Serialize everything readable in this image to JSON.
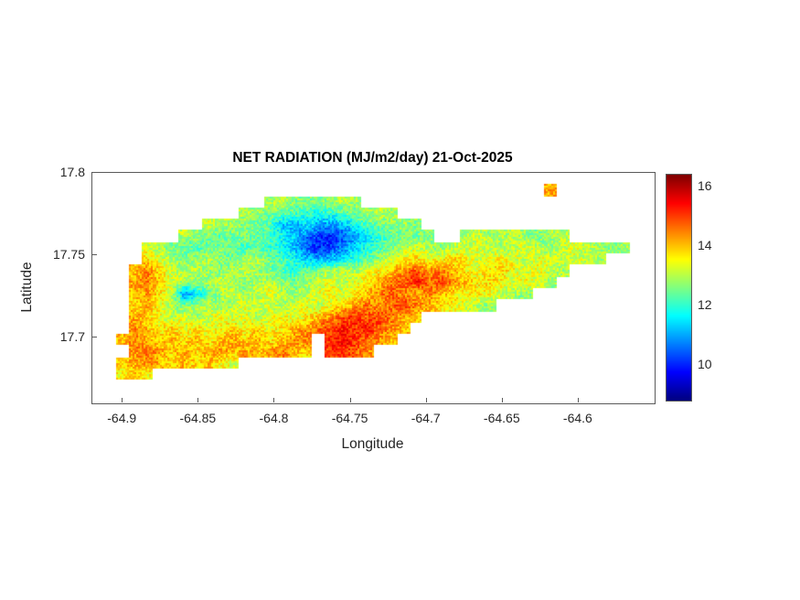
{
  "chart_data": {
    "type": "heatmap",
    "title": "NET RADIATION (MJ/m2/day) 21-Oct-2025",
    "xlabel": "Longitude",
    "ylabel": "Latitude",
    "units": "MJ/m2/day",
    "x_range": [
      -64.92,
      -64.55
    ],
    "y_range": [
      17.66,
      17.8
    ],
    "x_ticks": [
      -64.9,
      -64.85,
      -64.8,
      -64.75,
      -64.7,
      -64.65,
      -64.6
    ],
    "y_ticks": [
      17.8,
      17.75,
      17.7
    ],
    "colormap": "jet",
    "color_range": [
      8.8,
      16.4
    ],
    "colorbar_ticks": [
      16,
      14,
      12,
      10
    ],
    "background_color": "#ffffff",
    "grid": {
      "nx": 46,
      "ny": 20,
      "rows": [
        {
          "row": 1,
          "start": 37,
          "vals": [
            14.2
          ]
        },
        {
          "row": 2,
          "start": 14,
          "vals": [
            12.9,
            13.0,
            12.7,
            12.5,
            12.6,
            12.8,
            13.0,
            12.8
          ]
        },
        {
          "row": 3,
          "start": 12,
          "vals": [
            13.0,
            12.8,
            12.6,
            12.4,
            12.2,
            12.0,
            11.8,
            12.0,
            12.3,
            12.5,
            12.8,
            13.0,
            12.9
          ]
        },
        {
          "row": 4,
          "start": 9,
          "vals": [
            13.2,
            13.0,
            12.8,
            12.6,
            12.5,
            12.3,
            11.2,
            11.0,
            11.5,
            11.0,
            10.8,
            11.2,
            11.8,
            12.2,
            12.5,
            12.7,
            12.8,
            12.6
          ]
        },
        {
          "row": 5,
          "start": 7,
          "vals": [
            13.0,
            12.8,
            12.5,
            12.3,
            12.5,
            12.6,
            12.4,
            12.2,
            11.8,
            11.4,
            10.6,
            10.2,
            10.0,
            10.4,
            11.0,
            11.6,
            12.0,
            12.4,
            12.6,
            12.5,
            12.7,
            null,
            null,
            12.9,
            13.1,
            12.8,
            12.9,
            13.0,
            12.8,
            12.6,
            12.9,
            13.0
          ]
        },
        {
          "row": 6,
          "start": 4,
          "vals": [
            13.3,
            12.9,
            12.6,
            12.4,
            12.2,
            12.4,
            12.6,
            12.3,
            12.1,
            12.3,
            12.0,
            11.6,
            11.2,
            10.4,
            10.0,
            10.2,
            10.8,
            11.4,
            11.8,
            12.2,
            12.6,
            13.0,
            13.2,
            12.9,
            12.7,
            13.0,
            13.2,
            13.4,
            13.1,
            12.9,
            13.1,
            13.3,
            13.0,
            12.8,
            13.1,
            13.3,
            13.0,
            12.8,
            12.6,
            12.9
          ]
        },
        {
          "row": 7,
          "start": 4,
          "vals": [
            13.8,
            13.3,
            12.9,
            12.6,
            12.8,
            13.0,
            12.7,
            12.5,
            12.8,
            13.0,
            12.6,
            12.2,
            11.8,
            11.4,
            11.0,
            11.2,
            11.6,
            12.0,
            12.4,
            12.8,
            13.2,
            13.5,
            13.8,
            13.4,
            13.6,
            13.9,
            13.5,
            13.2,
            13.4,
            13.6,
            13.3,
            13.1,
            13.4,
            13.2,
            13.0,
            13.3,
            13.1,
            12.9
          ]
        },
        {
          "row": 8,
          "start": 3,
          "vals": [
            14.0,
            14.4,
            13.8,
            13.2,
            12.9,
            13.1,
            12.8,
            12.6,
            12.9,
            13.1,
            12.8,
            12.5,
            12.2,
            12.0,
            12.3,
            12.6,
            12.9,
            13.2,
            12.9,
            13.3,
            13.6,
            14.0,
            14.4,
            14.8,
            14.3,
            14.6,
            14.1,
            13.7,
            13.4,
            13.7,
            13.9,
            13.5,
            13.2,
            13.5,
            13.1,
            12.9
          ]
        },
        {
          "row": 9,
          "start": 3,
          "vals": [
            14.2,
            14.6,
            13.9,
            13.3,
            12.9,
            12.6,
            12.9,
            13.2,
            12.9,
            12.6,
            12.9,
            13.1,
            12.8,
            12.5,
            12.8,
            13.1,
            13.4,
            13.0,
            13.3,
            13.7,
            14.1,
            14.5,
            14.9,
            15.2,
            14.7,
            14.9,
            14.4,
            14.0,
            13.6,
            13.9,
            13.5,
            13.2,
            13.5,
            13.1,
            12.8
          ]
        },
        {
          "row": 10,
          "start": 3,
          "vals": [
            14.0,
            14.3,
            13.7,
            13.1,
            10.8,
            11.5,
            12.4,
            12.8,
            13.1,
            12.8,
            13.1,
            13.4,
            13.0,
            12.7,
            13.0,
            13.3,
            13.6,
            13.2,
            13.6,
            14.0,
            14.4,
            14.8,
            14.4,
            14.1,
            14.5,
            14.2,
            13.8,
            13.5,
            13.8,
            13.4,
            13.1,
            12.9,
            12.7
          ]
        },
        {
          "row": 11,
          "start": 3,
          "vals": [
            13.8,
            14.1,
            13.5,
            12.9,
            12.5,
            12.8,
            13.1,
            12.7,
            13.0,
            13.3,
            12.9,
            13.2,
            12.9,
            13.2,
            13.5,
            13.1,
            13.4,
            13.8,
            14.2,
            14.6,
            14.2,
            14.6,
            15.0,
            14.5,
            14.1,
            13.8,
            13.5,
            13.2,
            12.9,
            12.7
          ]
        },
        {
          "row": 12,
          "start": 3,
          "vals": [
            14.2,
            13.9,
            13.4,
            13.0,
            13.3,
            12.9,
            13.2,
            13.5,
            13.1,
            13.4,
            13.0,
            13.3,
            13.6,
            13.2,
            13.6,
            14.0,
            14.4,
            14.8,
            15.1,
            14.7,
            15.0,
            14.6,
            14.2,
            13.9
          ]
        },
        {
          "row": 13,
          "start": 3,
          "vals": [
            14.4,
            14.0,
            13.6,
            13.9,
            13.4,
            13.7,
            13.3,
            13.6,
            13.9,
            13.5,
            13.8,
            13.4,
            13.7,
            14.0,
            14.3,
            14.7,
            15.0,
            15.3,
            15.0,
            15.2,
            14.8,
            14.4,
            14.0
          ]
        },
        {
          "row": 14,
          "start": 2,
          "vals": [
            14.1,
            14.5,
            14.2,
            13.8,
            14.1,
            13.7,
            14.0,
            13.6,
            13.9,
            14.2,
            13.8,
            14.1,
            13.7,
            14.0,
            14.3,
            14.6,
            null,
            15.1,
            15.4,
            15.0,
            14.7,
            14.3,
            13.9
          ]
        },
        {
          "row": 15,
          "start": 3,
          "vals": [
            14.3,
            14.6,
            14.2,
            13.9,
            14.2,
            13.8,
            14.1,
            14.4,
            14.0,
            14.3,
            13.9,
            14.2,
            14.5,
            14.1,
            13.8,
            null,
            15.0,
            15.2,
            14.8,
            14.3
          ]
        },
        {
          "row": 16,
          "start": 2,
          "vals": [
            13.9,
            14.2,
            14.5,
            14.1,
            13.8,
            14.1,
            13.7,
            14.0,
            13.6,
            13.3
          ]
        },
        {
          "row": 17,
          "start": 2,
          "vals": [
            13.6,
            13.9,
            13.5
          ]
        }
      ]
    }
  }
}
